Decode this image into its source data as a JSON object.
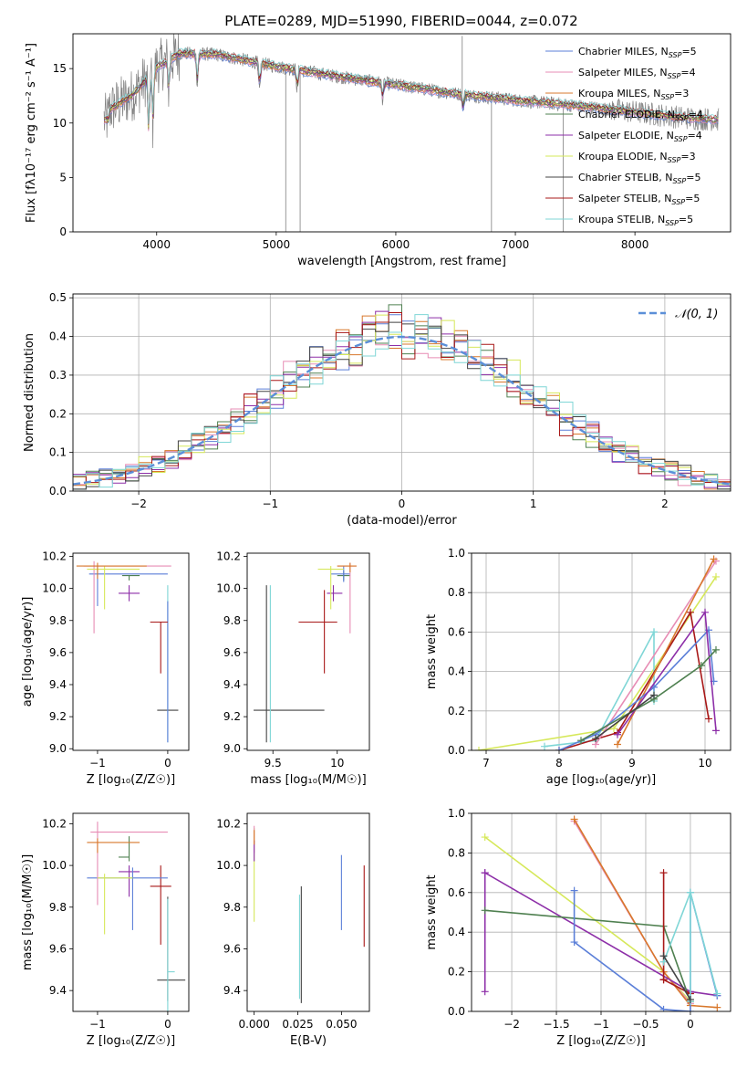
{
  "figure": {
    "title": "PLATE=0289, MJD=51990, FIBERID=0044, z=0.072"
  },
  "models": [
    {
      "name": "Chabrier MILES",
      "n_ssp": "5",
      "color": "#5b7fd8"
    },
    {
      "name": "Salpeter MILES",
      "n_ssp": "4",
      "color": "#e78cb4"
    },
    {
      "name": "Kroupa MILES",
      "n_ssp": "3",
      "color": "#d8782c"
    },
    {
      "name": "Chabrier ELODIE",
      "n_ssp": "4",
      "color": "#4f8050"
    },
    {
      "name": "Salpeter ELODIE",
      "n_ssp": "4",
      "color": "#8d2fa8"
    },
    {
      "name": "Kroupa ELODIE",
      "n_ssp": "3",
      "color": "#d6e85a"
    },
    {
      "name": "Chabrier STELIB",
      "n_ssp": "5",
      "color": "#444444"
    },
    {
      "name": "Salpeter STELIB",
      "n_ssp": "5",
      "color": "#a81818"
    },
    {
      "name": "Kroupa STELIB",
      "n_ssp": "5",
      "color": "#7fd6d6"
    }
  ],
  "chart_data": [
    {
      "id": "spectrum",
      "type": "line",
      "xlabel": "wavelength [Angstrom, rest frame]",
      "ylabel": "Flux [fλ10⁻¹⁷ erg cm⁻² s⁻¹ A⁻¹]",
      "xlim": [
        3300,
        8800
      ],
      "ylim": [
        0,
        18.2
      ],
      "xticks": [
        4000,
        5000,
        6000,
        7000,
        8000
      ],
      "yticks": [
        0,
        5,
        10,
        15
      ],
      "grid": false,
      "legend": "top-right",
      "data_color": "#808080",
      "continuum": [
        [
          3600,
          11.2
        ],
        [
          3800,
          12.6
        ],
        [
          4000,
          15.1
        ],
        [
          4200,
          16.4
        ],
        [
          4500,
          16.3
        ],
        [
          5000,
          15.2
        ],
        [
          5500,
          14.3
        ],
        [
          6000,
          13.5
        ],
        [
          6500,
          12.7
        ],
        [
          7000,
          12.1
        ],
        [
          7500,
          11.6
        ],
        [
          8000,
          11.0
        ],
        [
          8400,
          10.5
        ],
        [
          8700,
          10.3
        ]
      ]
    },
    {
      "id": "residuals",
      "type": "step",
      "xlabel": "(data-model)/error",
      "ylabel": "Normed distribution",
      "xlim": [
        -2.5,
        2.5
      ],
      "ylim": [
        0,
        0.51
      ],
      "xticks": [
        -2,
        -1,
        0,
        1,
        2
      ],
      "yticks": [
        0,
        0.1,
        0.2,
        0.3,
        0.4,
        0.5
      ],
      "grid": true,
      "legend": "top-right",
      "gaussian_label": "𝒩(0, 1)",
      "gaussian_color": "#5b8fd8",
      "bin_edges_start": -2.5,
      "bin_width": 0.1
    },
    {
      "id": "age-vs-Z",
      "type": "errorbar",
      "xlabel": "Z [log₁₀(Z/Z☉)]",
      "ylabel": "age  [log₁₀(age/yr)]",
      "xlim": [
        -1.35,
        0.3
      ],
      "ylim": [
        8.99,
        10.22
      ],
      "xticks": [
        -1,
        0
      ],
      "yticks": [
        9.0,
        9.2,
        9.4,
        9.6,
        9.8,
        10.0,
        10.2
      ],
      "points": [
        {
          "x": 0.0,
          "y": 9.24,
          "xerr": [
            0.15,
            0.15
          ],
          "yerr": [
            0.0,
            0.0
          ],
          "color": "#444444"
        },
        {
          "x": 0.0,
          "y": 9.52,
          "xerr": [
            0.0,
            0.0
          ],
          "yerr": [
            0.48,
            0.5
          ],
          "color": "#7fd6d6"
        },
        {
          "x": 0.0,
          "y": 9.52,
          "xerr": [
            0.0,
            0.0
          ],
          "yerr": [
            0.48,
            0.4
          ],
          "color": "#5b7fd8"
        },
        {
          "x": -0.1,
          "y": 9.79,
          "xerr": [
            0.15,
            0.1
          ],
          "yerr": [
            0.32,
            0.0
          ],
          "color": "#a81818"
        },
        {
          "x": -0.55,
          "y": 9.97,
          "xerr": [
            0.15,
            0.15
          ],
          "yerr": [
            0.05,
            0.05
          ],
          "color": "#8d2fa8"
        },
        {
          "x": -0.55,
          "y": 10.08,
          "xerr": [
            0.1,
            0.15
          ],
          "yerr": [
            0.03,
            0.0
          ],
          "color": "#4f8050"
        },
        {
          "x": -1.0,
          "y": 10.09,
          "xerr": [
            0.12,
            1.0
          ],
          "yerr": [
            0.2,
            0.05
          ],
          "color": "#5b7fd8"
        },
        {
          "x": -1.05,
          "y": 10.14,
          "xerr": [
            0.15,
            1.1
          ],
          "yerr": [
            0.42,
            0.03
          ],
          "color": "#e78cb4"
        },
        {
          "x": -0.9,
          "y": 10.12,
          "xerr": [
            0.25,
            0.5
          ],
          "yerr": [
            0.25,
            0.02
          ],
          "color": "#d6e85a"
        },
        {
          "x": -1.0,
          "y": 10.14,
          "xerr": [
            0.3,
            0.7
          ],
          "yerr": [
            0.08,
            0.02
          ],
          "color": "#d8782c"
        }
      ]
    },
    {
      "id": "age-vs-mass",
      "type": "errorbar",
      "xlabel": "mass [log₁₀(M/M☉)]",
      "ylabel": "",
      "xlim": [
        9.3,
        10.25
      ],
      "ylim": [
        8.99,
        10.22
      ],
      "xticks": [
        9.5,
        10.0
      ],
      "yticks": [
        9.0,
        9.2,
        9.4,
        9.6,
        9.8,
        10.0,
        10.2
      ],
      "points": [
        {
          "x": 9.45,
          "y": 9.24,
          "xerr": [
            0.1,
            0.45
          ],
          "yerr": [
            0.2,
            0.78
          ],
          "color": "#444444"
        },
        {
          "x": 9.48,
          "y": 9.24,
          "xerr": [
            0.0,
            0.0
          ],
          "yerr": [
            0.2,
            0.78
          ],
          "color": "#7fd6d6"
        },
        {
          "x": 9.9,
          "y": 9.79,
          "xerr": [
            0.2,
            0.1
          ],
          "yerr": [
            0.32,
            0.2
          ],
          "color": "#a81818"
        },
        {
          "x": 9.97,
          "y": 9.97,
          "xerr": [
            0.05,
            0.07
          ],
          "yerr": [
            0.05,
            0.05
          ],
          "color": "#8d2fa8"
        },
        {
          "x": 10.05,
          "y": 10.08,
          "xerr": [
            0.05,
            0.05
          ],
          "yerr": [
            0.03,
            0.03
          ],
          "color": "#4f8050"
        },
        {
          "x": 10.05,
          "y": 10.09,
          "xerr": [
            0.1,
            0.05
          ],
          "yerr": [
            0.05,
            0.05
          ],
          "color": "#5b7fd8"
        },
        {
          "x": 10.1,
          "y": 10.14,
          "xerr": [
            0.1,
            0.05
          ],
          "yerr": [
            0.42,
            0.02
          ],
          "color": "#e78cb4"
        },
        {
          "x": 9.95,
          "y": 10.12,
          "xerr": [
            0.1,
            0.1
          ],
          "yerr": [
            0.25,
            0.02
          ],
          "color": "#d6e85a"
        },
        {
          "x": 10.1,
          "y": 10.14,
          "xerr": [
            0.1,
            0.05
          ],
          "yerr": [
            0.04,
            0.02
          ],
          "color": "#d8782c"
        }
      ]
    },
    {
      "id": "weight-vs-age",
      "type": "line",
      "xlabel": "age  [log₁₀(age/yr)]",
      "ylabel": "mass weight",
      "xlim": [
        6.8,
        10.35
      ],
      "ylim": [
        0,
        1.0
      ],
      "xticks": [
        7,
        8,
        9,
        10
      ],
      "yticks": [
        0.0,
        0.2,
        0.4,
        0.6,
        0.8,
        1.0
      ],
      "grid": true,
      "series": [
        {
          "color": "#d6e85a",
          "x": [
            6.9,
            8.75,
            10.15
          ],
          "y": [
            0.0,
            0.11,
            0.88
          ]
        },
        {
          "color": "#7fd6d6",
          "x": [
            7.8,
            8.5,
            9.3,
            9.3,
            9.3
          ],
          "y": [
            0.02,
            0.05,
            0.6,
            0.25,
            0.6
          ]
        },
        {
          "color": "#a81818",
          "x": [
            8.0,
            8.8,
            9.8,
            10.05
          ],
          "y": [
            0.0,
            0.09,
            0.7,
            0.16
          ]
        },
        {
          "color": "#e78cb4",
          "x": [
            8.5,
            10.15
          ],
          "y": [
            0.03,
            0.96
          ]
        },
        {
          "color": "#d8782c",
          "x": [
            8.8,
            10.12
          ],
          "y": [
            0.03,
            0.97
          ]
        },
        {
          "color": "#5b7fd8",
          "x": [
            8.0,
            8.5,
            9.3,
            10.05,
            10.12
          ],
          "y": [
            0.0,
            0.08,
            0.32,
            0.61,
            0.35
          ]
        },
        {
          "color": "#8d2fa8",
          "x": [
            8.8,
            10.0,
            10.15
          ],
          "y": [
            0.08,
            0.7,
            0.1
          ]
        },
        {
          "color": "#4f8050",
          "x": [
            8.3,
            9.3,
            9.95,
            10.15
          ],
          "y": [
            0.05,
            0.26,
            0.43,
            0.51
          ]
        },
        {
          "color": "#444444",
          "x": [
            8.5,
            9.3
          ],
          "y": [
            0.06,
            0.28
          ]
        }
      ]
    },
    {
      "id": "mass-vs-Z",
      "type": "errorbar",
      "xlabel": "Z [log₁₀(Z/Z☉)]",
      "ylabel": "mass [log₁₀(M/M☉)]",
      "xlim": [
        -1.35,
        0.3
      ],
      "ylim": [
        9.3,
        10.25
      ],
      "xticks": [
        -1,
        0
      ],
      "yticks": [
        9.4,
        9.6,
        9.8,
        10.0,
        10.2
      ],
      "points": [
        {
          "x": 0.0,
          "y": 9.45,
          "xerr": [
            0.15,
            0.25
          ],
          "yerr": [
            0.1,
            0.4
          ],
          "color": "#444444"
        },
        {
          "x": 0.0,
          "y": 9.49,
          "xerr": [
            0.0,
            0.1
          ],
          "yerr": [
            0.2,
            0.35
          ],
          "color": "#7fd6d6"
        },
        {
          "x": -0.1,
          "y": 9.9,
          "xerr": [
            0.15,
            0.15
          ],
          "yerr": [
            0.28,
            0.1
          ],
          "color": "#a81818"
        },
        {
          "x": -0.55,
          "y": 9.97,
          "xerr": [
            0.15,
            0.15
          ],
          "yerr": [
            0.12,
            0.03
          ],
          "color": "#8d2fa8"
        },
        {
          "x": -0.55,
          "y": 10.04,
          "xerr": [
            0.15,
            0.0
          ],
          "yerr": [
            0.02,
            0.1
          ],
          "color": "#4f8050"
        },
        {
          "x": -0.5,
          "y": 9.94,
          "xerr": [
            0.65,
            0.5
          ],
          "yerr": [
            0.25,
            0.05
          ],
          "color": "#5b7fd8"
        },
        {
          "x": -1.0,
          "y": 10.16,
          "xerr": [
            0.1,
            1.0
          ],
          "yerr": [
            0.35,
            0.05
          ],
          "color": "#e78cb4"
        },
        {
          "x": -0.9,
          "y": 9.94,
          "xerr": [
            0.1,
            0.4
          ],
          "yerr": [
            0.27,
            0.02
          ],
          "color": "#d6e85a"
        },
        {
          "x": -1.0,
          "y": 10.11,
          "xerr": [
            0.15,
            0.6
          ],
          "yerr": [
            0.05,
            0.02
          ],
          "color": "#d8782c"
        }
      ]
    },
    {
      "id": "mass-vs-ebv",
      "type": "errorbar",
      "xlabel": "E(B-V)",
      "ylabel": "",
      "xlim": [
        -0.004,
        0.066
      ],
      "ylim": [
        9.3,
        10.25
      ],
      "xticks": [
        0.0,
        0.025,
        0.05
      ],
      "xticklabels": [
        "0.000",
        "0.025",
        "0.050"
      ],
      "yticks": [
        9.4,
        9.6,
        9.8,
        10.0,
        10.2
      ],
      "points": [
        {
          "x": 0.0,
          "y": 10.08,
          "xerr": [
            0,
            0
          ],
          "yerr": [
            0.35,
            0.1
          ],
          "color": "#d6e85a"
        },
        {
          "x": 0.0,
          "y": 10.11,
          "xerr": [
            0,
            0
          ],
          "yerr": [
            0.05,
            0.08
          ],
          "color": "#e78cb4"
        },
        {
          "x": 0.0,
          "y": 10.07,
          "xerr": [
            0,
            0
          ],
          "yerr": [
            0.05,
            0.05
          ],
          "color": "#8d2fa8"
        },
        {
          "x": 0.0,
          "y": 10.15,
          "xerr": [
            0,
            0
          ],
          "yerr": [
            0.05,
            0.02
          ],
          "color": "#d8782c"
        },
        {
          "x": 0.027,
          "y": 9.62,
          "xerr": [
            0,
            0
          ],
          "yerr": [
            0.28,
            0.28
          ],
          "color": "#444444"
        },
        {
          "x": 0.026,
          "y": 9.56,
          "xerr": [
            0,
            0
          ],
          "yerr": [
            0.2,
            0.3
          ],
          "color": "#7fd6d6"
        },
        {
          "x": 0.05,
          "y": 9.87,
          "xerr": [
            0,
            0
          ],
          "yerr": [
            0.18,
            0.18
          ],
          "color": "#5b7fd8"
        },
        {
          "x": 0.063,
          "y": 9.81,
          "xerr": [
            0,
            0
          ],
          "yerr": [
            0.2,
            0.19
          ],
          "color": "#a81818"
        }
      ]
    },
    {
      "id": "weight-vs-Z",
      "type": "line",
      "xlabel": "Z [log₁₀(Z/Z☉)]",
      "ylabel": "mass weight",
      "xlim": [
        -2.45,
        0.45
      ],
      "ylim": [
        0,
        1.0
      ],
      "xticks": [
        -2.0,
        -1.5,
        -1.0,
        -0.5,
        0.0
      ],
      "yticks": [
        0.0,
        0.2,
        0.4,
        0.6,
        0.8,
        1.0
      ],
      "grid": true,
      "series": [
        {
          "color": "#d6e85a",
          "x": [
            -2.3,
            -0.3,
            0.0
          ],
          "y": [
            0.88,
            0.2,
            0.05
          ]
        },
        {
          "color": "#e78cb4",
          "x": [
            -1.3,
            -0.3,
            0.0
          ],
          "y": [
            0.96,
            0.2,
            0.04
          ]
        },
        {
          "color": "#d8782c",
          "x": [
            -1.3,
            -0.3,
            0.0,
            0.3
          ],
          "y": [
            0.97,
            0.2,
            0.03,
            0.02
          ]
        },
        {
          "color": "#8d2fa8",
          "x": [
            -2.3,
            -2.3,
            -2.3,
            0.0,
            0.3
          ],
          "y": [
            0.1,
            0.7,
            0.7,
            0.1,
            0.08
          ]
        },
        {
          "color": "#4f8050",
          "x": [
            -2.3,
            -0.3,
            0.0
          ],
          "y": [
            0.51,
            0.43,
            0.05
          ]
        },
        {
          "color": "#5b7fd8",
          "x": [
            -1.3,
            -1.3,
            -0.3,
            0.0,
            0.0,
            0.3
          ],
          "y": [
            0.61,
            0.35,
            0.01,
            0.0,
            0.6,
            0.08
          ]
        },
        {
          "color": "#a81818",
          "x": [
            -0.3,
            -0.3,
            -0.3,
            0.0
          ],
          "y": [
            0.16,
            0.7,
            0.16,
            0.09
          ]
        },
        {
          "color": "#7fd6d6",
          "x": [
            -0.3,
            0.0,
            0.0,
            0.0,
            0.3
          ],
          "y": [
            0.25,
            0.6,
            0.05,
            0.6,
            0.09
          ]
        },
        {
          "color": "#444444",
          "x": [
            -0.3,
            0.0
          ],
          "y": [
            0.28,
            0.06
          ]
        }
      ]
    }
  ]
}
